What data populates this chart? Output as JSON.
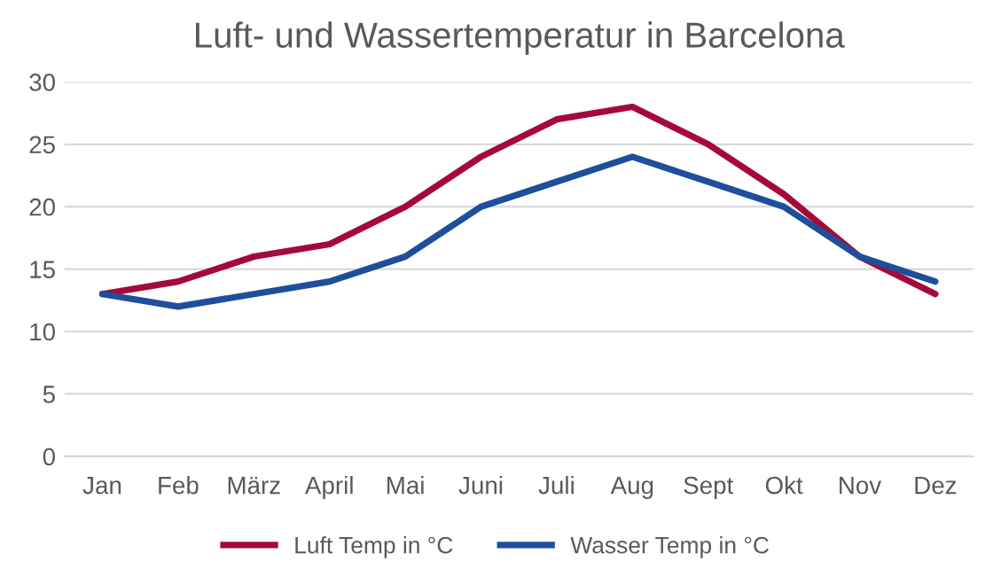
{
  "chart_data": {
    "type": "line",
    "title": "Luft- und Wassertemperatur in Barcelona",
    "categories": [
      "Jan",
      "Feb",
      "März",
      "April",
      "Mai",
      "Juni",
      "Juli",
      "Aug",
      "Sept",
      "Okt",
      "Nov",
      "Dez"
    ],
    "series": [
      {
        "name": "Luft Temp in °C",
        "color": "#a5093a",
        "values": [
          13,
          14,
          16,
          17,
          20,
          24,
          27,
          28,
          25,
          21,
          16,
          13
        ]
      },
      {
        "name": "Wasser Temp in °C",
        "color": "#1f4e9a",
        "values": [
          13,
          12,
          13,
          14,
          16,
          20,
          22,
          24,
          22,
          20,
          16,
          14
        ]
      }
    ],
    "ylim": [
      0,
      30
    ],
    "yticks": [
      0,
      5,
      10,
      15,
      20,
      25,
      30
    ],
    "grid": "y",
    "legend": "bottom",
    "marker": "none",
    "line_style": "solid"
  }
}
